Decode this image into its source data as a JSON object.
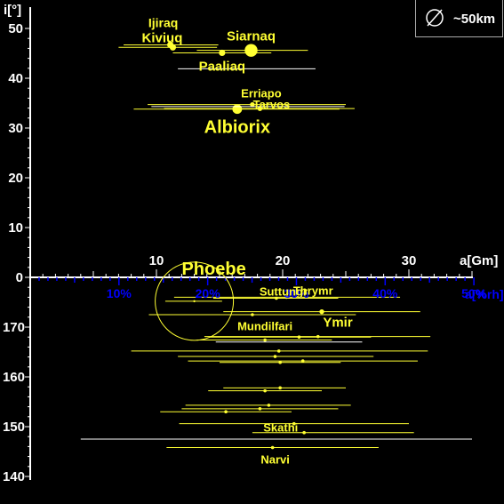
{
  "legend": {
    "symbol_name": "diameter-icon",
    "text": "~50km"
  },
  "chart_data": {
    "type": "scatter",
    "title": "",
    "xlabel": "a[Gm]",
    "xlabel2": "a[%rh]",
    "ylabel": "i[°]",
    "xlim": [
      0,
      35
    ],
    "x_ticks": [
      "10",
      "20",
      "30"
    ],
    "x_tick_values": [
      10,
      20,
      30
    ],
    "pct_ticks": [
      "10%",
      "20%",
      "30%",
      "40%",
      "50%"
    ],
    "pct_tick_values": [
      10,
      20,
      30,
      40,
      50
    ],
    "pct_scale_gm_per_pct": 0.703,
    "prograde_ylim": [
      0,
      50
    ],
    "prograde_ticks": [
      "0",
      "10",
      "20",
      "30",
      "40",
      "50"
    ],
    "prograde_tick_values": [
      0,
      10,
      20,
      30,
      40,
      50
    ],
    "retrograde_ylim": [
      180,
      140
    ],
    "retrograde_ticks": [
      "170",
      "160",
      "150",
      "140"
    ],
    "retrograde_tick_values": [
      170,
      160,
      150,
      140
    ],
    "grid": false,
    "colors": {
      "named": "#ffff33",
      "unnamed": "#ffffff",
      "axis": "#ffffff",
      "pct": "#0000ff"
    },
    "moons": [
      {
        "label": "Ijiraq",
        "a": 11.1,
        "i": 46.7,
        "range": [
          7.4,
          14.9
        ],
        "size": 4,
        "named": true
      },
      {
        "label": "Kiviuq",
        "a": 11.3,
        "i": 46.2,
        "range": [
          7.0,
          14.8
        ],
        "size": 4,
        "named": true
      },
      {
        "label": "Siarnaq",
        "a": 17.5,
        "i": 45.6,
        "range": [
          13.2,
          22.0
        ],
        "size": 8,
        "named": true
      },
      {
        "label": "Paaliaq",
        "a": 15.2,
        "i": 45.1,
        "range": [
          11.3,
          19.1
        ],
        "size": 4,
        "named": true
      },
      {
        "label": "",
        "a": 17.2,
        "i": 41.9,
        "range": [
          11.7,
          22.6
        ],
        "size": 0,
        "named": false
      },
      {
        "label": "Erriapo",
        "a": 17.6,
        "i": 34.7,
        "range": [
          9.3,
          25.0
        ],
        "size": 3,
        "named": true
      },
      {
        "label": "Tarvos",
        "a": 18.2,
        "i": 33.9,
        "range": [
          10.6,
          25.7
        ],
        "size": 3,
        "named": true
      },
      {
        "label": "Albiorix",
        "a": 16.4,
        "i": 33.8,
        "range": [
          8.2,
          24.5
        ],
        "size": 6,
        "named": true
      },
      {
        "label": "",
        "a": 18.0,
        "i": 34.3,
        "range": [
          9.6,
          24.9
        ],
        "size": 0,
        "named": false
      },
      {
        "label": "Phoebe",
        "a": 13.0,
        "i": 175.2,
        "range": [
          10.7,
          15.2
        ],
        "size": 22,
        "named": true,
        "outline": true
      },
      {
        "label": "Thrymr",
        "a": 20.3,
        "i": 176.0,
        "range": [
          11.4,
          29.3
        ],
        "size": 2,
        "named": true
      },
      {
        "label": "Suttungr",
        "a": 19.5,
        "i": 175.8,
        "range": [
          14.5,
          24.4
        ],
        "size": 2,
        "named": true
      },
      {
        "label": "Ymir",
        "a": 23.1,
        "i": 173.1,
        "range": [
          15.3,
          30.9
        ],
        "size": 3,
        "named": true
      },
      {
        "label": "",
        "a": 17.6,
        "i": 172.5,
        "range": [
          9.4,
          25.8
        ],
        "size": 2,
        "named": true
      },
      {
        "label": "Mundilfari",
        "a": 18.6,
        "i": 167.4,
        "range": [
          13.2,
          23.9
        ],
        "size": 2,
        "named": true
      },
      {
        "label": "",
        "a": 22.8,
        "i": 168.1,
        "range": [
          13.8,
          31.7
        ],
        "size": 2,
        "named": true
      },
      {
        "label": "",
        "a": 21.3,
        "i": 168.0,
        "range": [
          14.2,
          27.0
        ],
        "size": 2,
        "named": true
      },
      {
        "label": "",
        "a": 18.5,
        "i": 167.0,
        "range": [
          14.7,
          26.3
        ],
        "size": 0,
        "named": false
      },
      {
        "label": "",
        "a": 19.7,
        "i": 165.2,
        "range": [
          8.0,
          31.5
        ],
        "size": 2,
        "named": true
      },
      {
        "label": "",
        "a": 19.4,
        "i": 164.1,
        "range": [
          11.7,
          27.2
        ],
        "size": 2,
        "named": true
      },
      {
        "label": "",
        "a": 21.6,
        "i": 163.2,
        "range": [
          12.5,
          30.7
        ],
        "size": 2,
        "named": true
      },
      {
        "label": "",
        "a": 19.8,
        "i": 162.9,
        "range": [
          15.0,
          24.6
        ],
        "size": 2,
        "named": true
      },
      {
        "label": "",
        "a": 19.8,
        "i": 157.8,
        "range": [
          15.3,
          25.0
        ],
        "size": 2,
        "named": true
      },
      {
        "label": "",
        "a": 18.6,
        "i": 157.2,
        "range": [
          14.1,
          23.1
        ],
        "size": 2,
        "named": true
      },
      {
        "label": "",
        "a": 18.9,
        "i": 154.3,
        "range": [
          12.3,
          25.4
        ],
        "size": 2,
        "named": true
      },
      {
        "label": "",
        "a": 18.2,
        "i": 153.6,
        "range": [
          12.0,
          24.4
        ],
        "size": 2,
        "named": true
      },
      {
        "label": "",
        "a": 15.5,
        "i": 153.0,
        "range": [
          10.3,
          20.7
        ],
        "size": 2,
        "named": true
      },
      {
        "label": "Skathi",
        "a": 20.9,
        "i": 150.6,
        "range": [
          11.8,
          30.0
        ],
        "size": 2,
        "named": true
      },
      {
        "label": "",
        "a": 21.7,
        "i": 148.8,
        "range": [
          17.6,
          30.4
        ],
        "size": 2,
        "named": true
      },
      {
        "label": "",
        "a": 19.8,
        "i": 147.5,
        "range": [
          4.0,
          35.0
        ],
        "size": 0,
        "named": false
      },
      {
        "label": "Narvi",
        "a": 19.2,
        "i": 145.8,
        "range": [
          10.8,
          27.6
        ],
        "size": 2,
        "named": true
      }
    ]
  }
}
